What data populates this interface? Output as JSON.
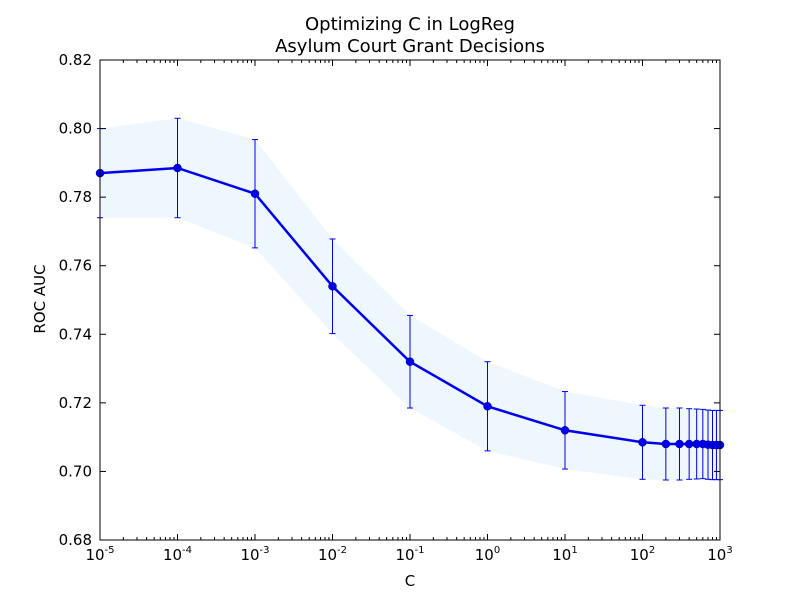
{
  "chart_data": {
    "type": "line",
    "title": [
      "Optimizing C in LogReg",
      "Asylum Court Grant Decisions"
    ],
    "xlabel": "C",
    "ylabel": "ROC AUC",
    "x_scale": "log",
    "xlim": [
      1e-05,
      1000
    ],
    "ylim": [
      0.68,
      0.82
    ],
    "x_ticks": [
      {
        "base": "10",
        "exp": "-5"
      },
      {
        "base": "10",
        "exp": "-4"
      },
      {
        "base": "10",
        "exp": "-3"
      },
      {
        "base": "10",
        "exp": "-2"
      },
      {
        "base": "10",
        "exp": "-1"
      },
      {
        "base": "10",
        "exp": "0"
      },
      {
        "base": "10",
        "exp": "1"
      },
      {
        "base": "10",
        "exp": "2"
      },
      {
        "base": "10",
        "exp": "3"
      }
    ],
    "y_ticks": [
      "0.68",
      "0.70",
      "0.72",
      "0.74",
      "0.76",
      "0.78",
      "0.80",
      "0.82"
    ],
    "grid": false,
    "colors": {
      "line": "#0000ee",
      "band": "#eef6fe",
      "errorbar": "#0000ee"
    },
    "series": [
      {
        "x": [
          1e-05,
          0.0001,
          0.001,
          0.01,
          0.1,
          1,
          10,
          100,
          200,
          300,
          400,
          500,
          600,
          700,
          800,
          900,
          1000
        ],
        "y": [
          0.787,
          0.7885,
          0.781,
          0.754,
          0.732,
          0.719,
          0.712,
          0.7085,
          0.708,
          0.708,
          0.708,
          0.708,
          0.708,
          0.7078,
          0.7077,
          0.7077,
          0.7077
        ],
        "err": [
          0.013,
          0.0145,
          0.0158,
          0.0138,
          0.0135,
          0.013,
          0.0113,
          0.0108,
          0.0105,
          0.0105,
          0.0103,
          0.0102,
          0.0101,
          0.0101,
          0.0101,
          0.0101,
          0.0101
        ]
      }
    ]
  }
}
